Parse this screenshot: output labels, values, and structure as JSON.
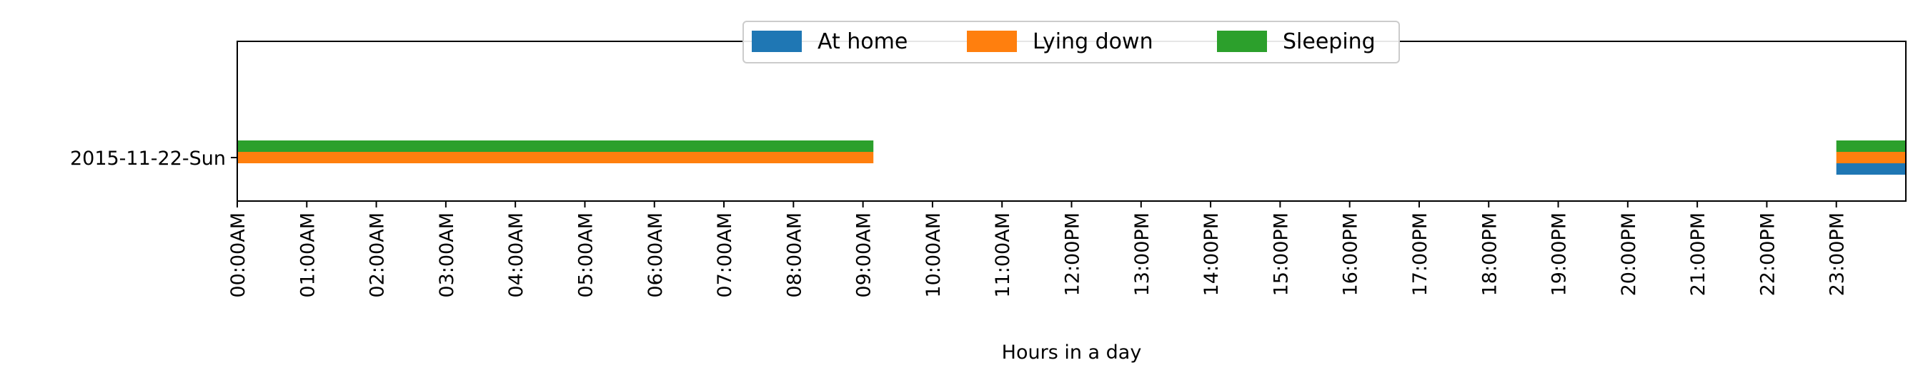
{
  "chart_data": {
    "type": "bar",
    "orientation": "horizontal",
    "xlabel": "Hours in a day",
    "ylabel": "",
    "xlim": [
      0,
      24
    ],
    "x_tick_values": [
      0,
      1,
      2,
      3,
      4,
      5,
      6,
      7,
      8,
      9,
      10,
      11,
      12,
      13,
      14,
      15,
      16,
      17,
      18,
      19,
      20,
      21,
      22,
      23
    ],
    "x_tick_labels": [
      "00:00AM",
      "01:00AM",
      "02:00AM",
      "03:00AM",
      "04:00AM",
      "05:00AM",
      "06:00AM",
      "07:00AM",
      "08:00AM",
      "09:00AM",
      "10:00AM",
      "11:00AM",
      "12:00PM",
      "13:00PM",
      "14:00PM",
      "15:00PM",
      "16:00PM",
      "17:00PM",
      "18:00PM",
      "19:00PM",
      "20:00PM",
      "21:00PM",
      "22:00PM",
      "23:00PM"
    ],
    "categories": [
      "2015-11-22-Sun"
    ],
    "legend": "upper-center",
    "grid": false,
    "series": [
      {
        "name": "At home",
        "color": "#1f77b4",
        "intervals": [
          [
            23.0,
            24.0
          ]
        ]
      },
      {
        "name": "Lying down",
        "color": "#ff7f0e",
        "intervals": [
          [
            0.0,
            9.15
          ],
          [
            23.0,
            24.0
          ]
        ]
      },
      {
        "name": "Sleeping",
        "color": "#2ca02c",
        "intervals": [
          [
            0.0,
            9.15
          ],
          [
            23.0,
            24.0
          ]
        ]
      }
    ]
  }
}
